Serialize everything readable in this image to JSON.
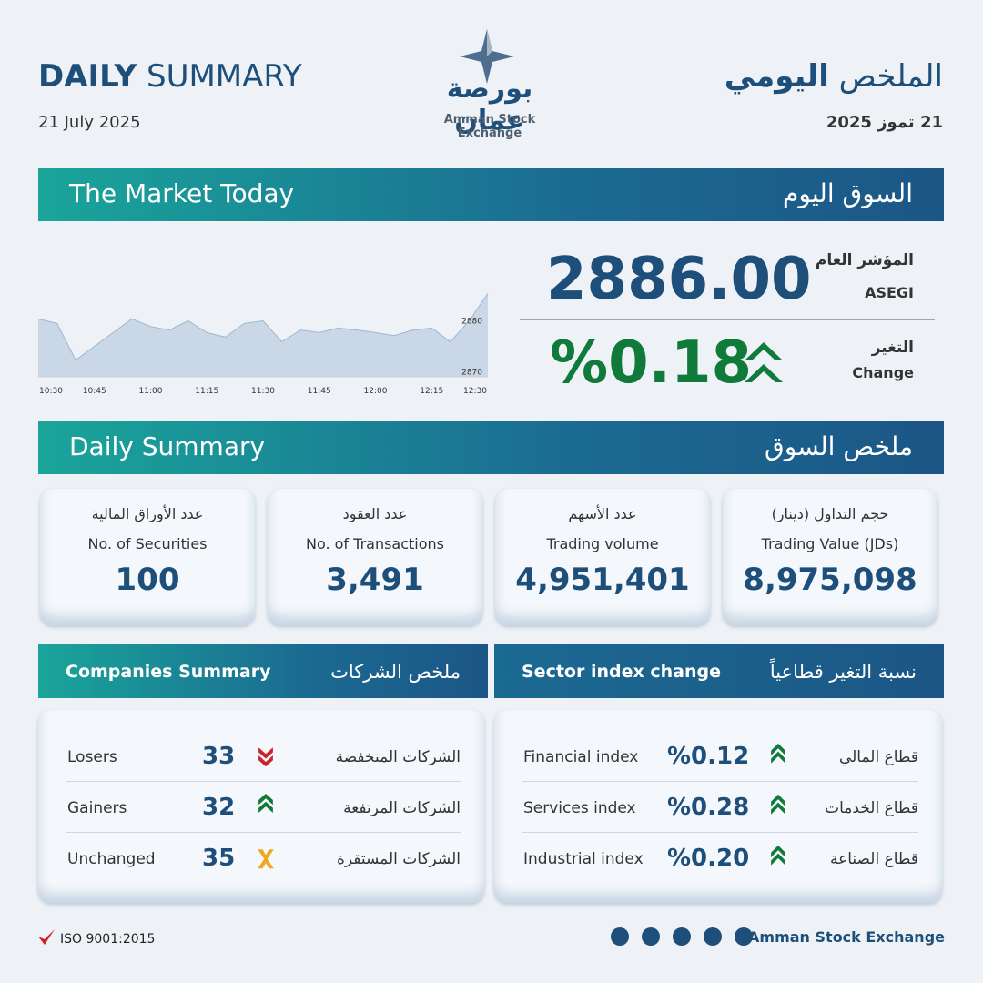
{
  "header": {
    "title_bold": "DAILY",
    "title_rest": "SUMMARY",
    "date": "21 July 2025",
    "title_ar_light": "الملخص",
    "title_ar_bold": "اليومي",
    "date_ar": "21 تموز 2025",
    "logo_ar": "بورصة عمان",
    "logo_en": "Amman Stock Exchange"
  },
  "market_today": {
    "title": "The Market Today",
    "title_ar": "السوق اليوم",
    "index_label_ar": "المؤشر العام",
    "index_label": "ASEGI",
    "index_value": "2886.00",
    "change_label_ar": "التغير",
    "change_label": "Change",
    "change_value": "%0.18"
  },
  "market_chart": {
    "type": "area",
    "x": [
      "10:30",
      null,
      null,
      "10:45",
      null,
      null,
      "11:00",
      null,
      null,
      "11:15",
      null,
      null,
      "11:30",
      null,
      null,
      "11:45",
      null,
      null,
      "12:00",
      null,
      null,
      "12:15",
      null,
      null,
      "12:30"
    ],
    "values": [
      2880.4,
      2879.5,
      2872.3,
      2875.0,
      2877.7,
      2880.4,
      2878.9,
      2878.2,
      2880.0,
      2877.7,
      2876.8,
      2879.5,
      2880.0,
      2875.9,
      2878.2,
      2877.7,
      2878.6,
      2878.2,
      2877.7,
      2877.1,
      2878.2,
      2878.6,
      2875.9,
      2880.0,
      2885.4
    ],
    "color": "#c9d7e6",
    "ylim": [
      2869,
      2886
    ],
    "yticks": [
      2870,
      2880
    ]
  },
  "daily_summary": {
    "title": "Daily Summary",
    "title_ar": "ملخص السوق",
    "cards": [
      {
        "label_ar": "عدد الأوراق المالية",
        "label": "No. of Securities",
        "value": "100"
      },
      {
        "label_ar": "عدد العقود",
        "label": "No. of Transactions",
        "value": "3,491"
      },
      {
        "label_ar": "عدد الأسهم",
        "label": "Trading volume",
        "value": "4,951,401"
      },
      {
        "label_ar": "حجم التداول (دينار)",
        "label": "Trading Value (JDs)",
        "value": "8,975,098"
      }
    ]
  },
  "companies": {
    "title": "Companies Summary",
    "title_ar": "ملخص الشركات",
    "rows": [
      {
        "label": "Losers",
        "value": "33",
        "label_ar": "الشركات المنخفضة"
      },
      {
        "label": "Gainers",
        "value": "32",
        "label_ar": "الشركات المرتفعة"
      },
      {
        "label": "Unchanged",
        "value": "35",
        "label_ar": "الشركات المستقرة"
      }
    ]
  },
  "sectors": {
    "title": "Sector index change",
    "title_ar": "نسبة التغير قطاعياً",
    "rows": [
      {
        "label": "Financial index",
        "value": "%0.12",
        "label_ar": "قطاع المالي"
      },
      {
        "label": "Services index",
        "value": "%0.28",
        "label_ar": "قطاع الخدمات"
      },
      {
        "label": "Industrial index",
        "value": "%0.20",
        "label_ar": "قطاع الصناعة"
      }
    ]
  },
  "footer": {
    "iso": "ISO 9001:2015",
    "org": "Amman Stock Exchange"
  }
}
